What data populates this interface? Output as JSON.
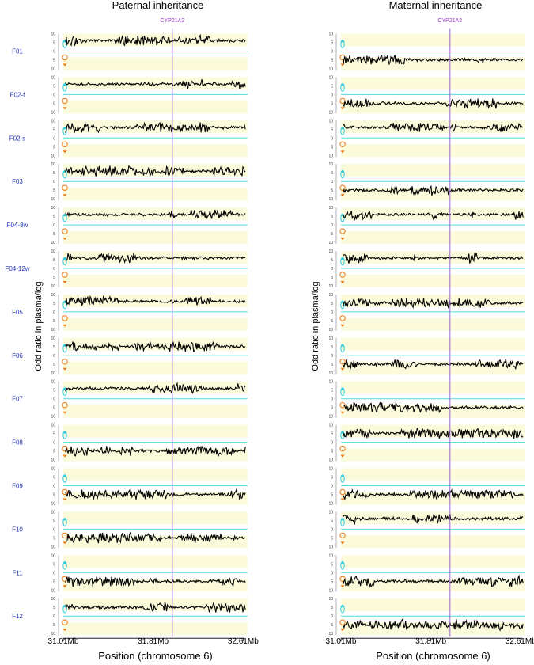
{
  "chart_data": {
    "type": "line",
    "gene_marker": {
      "label": "CYP21A2",
      "x_mb": 31.98
    },
    "x_ticks": [
      31.01,
      31.81,
      32.61
    ],
    "x_tick_labels": [
      "31.01Mb",
      "31.81Mb",
      "32.61Mb"
    ],
    "x_range_mb": [
      31.01,
      32.65
    ],
    "xlabel": "Position (chromosome 6)",
    "ylabel": "Odd ratio in plasma/log",
    "y_ticks": [
      10,
      5,
      0,
      5,
      10
    ],
    "y_range": [
      -10,
      10
    ],
    "samples": [
      "F01",
      "F02-f",
      "F02-s",
      "F03",
      "F04-8w",
      "F04-12w",
      "F05",
      "F06",
      "F07",
      "F08",
      "F09",
      "F10",
      "F11",
      "F12"
    ],
    "panels": [
      {
        "title": "Paternal inheritance",
        "series": [
          {
            "sample": "F01",
            "direction": "up",
            "level": 6
          },
          {
            "sample": "F02-f",
            "direction": "up",
            "level": 6
          },
          {
            "sample": "F02-s",
            "direction": "up",
            "level": 6
          },
          {
            "sample": "F03",
            "direction": "up",
            "level": 6
          },
          {
            "sample": "F04-8w",
            "direction": "up",
            "level": 6
          },
          {
            "sample": "F04-12w",
            "direction": "up",
            "level": 6
          },
          {
            "sample": "F05",
            "direction": "up",
            "level": 6
          },
          {
            "sample": "F06",
            "direction": "up",
            "level": 5
          },
          {
            "sample": "F07",
            "direction": "up",
            "level": 6
          },
          {
            "sample": "F08",
            "direction": "down",
            "level": -5
          },
          {
            "sample": "F09",
            "direction": "down",
            "level": -5
          },
          {
            "sample": "F10",
            "direction": "down",
            "level": -5
          },
          {
            "sample": "F11",
            "direction": "down",
            "level": -5
          },
          {
            "sample": "F12",
            "direction": "up",
            "level": 5
          }
        ]
      },
      {
        "title": "Maternal inheritance",
        "series": [
          {
            "sample": "F01",
            "direction": "down",
            "level": -5
          },
          {
            "sample": "F02-f",
            "direction": "down",
            "level": -5
          },
          {
            "sample": "F02-s",
            "direction": "up",
            "level": 6
          },
          {
            "sample": "F03",
            "direction": "down",
            "level": -5
          },
          {
            "sample": "F04-8w",
            "direction": "up",
            "level": 6
          },
          {
            "sample": "F04-12w",
            "direction": "up",
            "level": 6
          },
          {
            "sample": "F05",
            "direction": "up",
            "level": 5
          },
          {
            "sample": "F06",
            "direction": "down",
            "level": -5
          },
          {
            "sample": "F07",
            "direction": "down",
            "level": -5
          },
          {
            "sample": "F08",
            "direction": "up",
            "level": 5
          },
          {
            "sample": "F09",
            "direction": "down",
            "level": -5
          },
          {
            "sample": "F10",
            "direction": "up",
            "level": 6
          },
          {
            "sample": "F11",
            "direction": "down",
            "level": -5
          },
          {
            "sample": "F12",
            "direction": "down",
            "level": -5
          }
        ]
      }
    ],
    "colors": {
      "band": "#fbfbdc",
      "zero_line": "#55d8e0",
      "gene_line": "#9966cc",
      "gene_label": "#9933cc",
      "sample_label": "#2233bb",
      "series": "#000000",
      "up_symbol": "#33ccdd",
      "down_symbol": "#ee7711"
    }
  }
}
